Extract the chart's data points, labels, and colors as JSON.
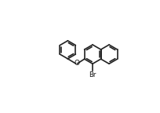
{
  "bg_color": "#ffffff",
  "line_color": "#1a1a1a",
  "line_width": 1.2,
  "bond_color": "#222222",
  "text_color": "#111111",
  "label_O": "O",
  "label_Br": "Br",
  "figsize": [
    2.04,
    1.44
  ],
  "dpi": 100,
  "xlim": [
    0.0,
    1.0
  ],
  "ylim": [
    0.0,
    1.0
  ]
}
